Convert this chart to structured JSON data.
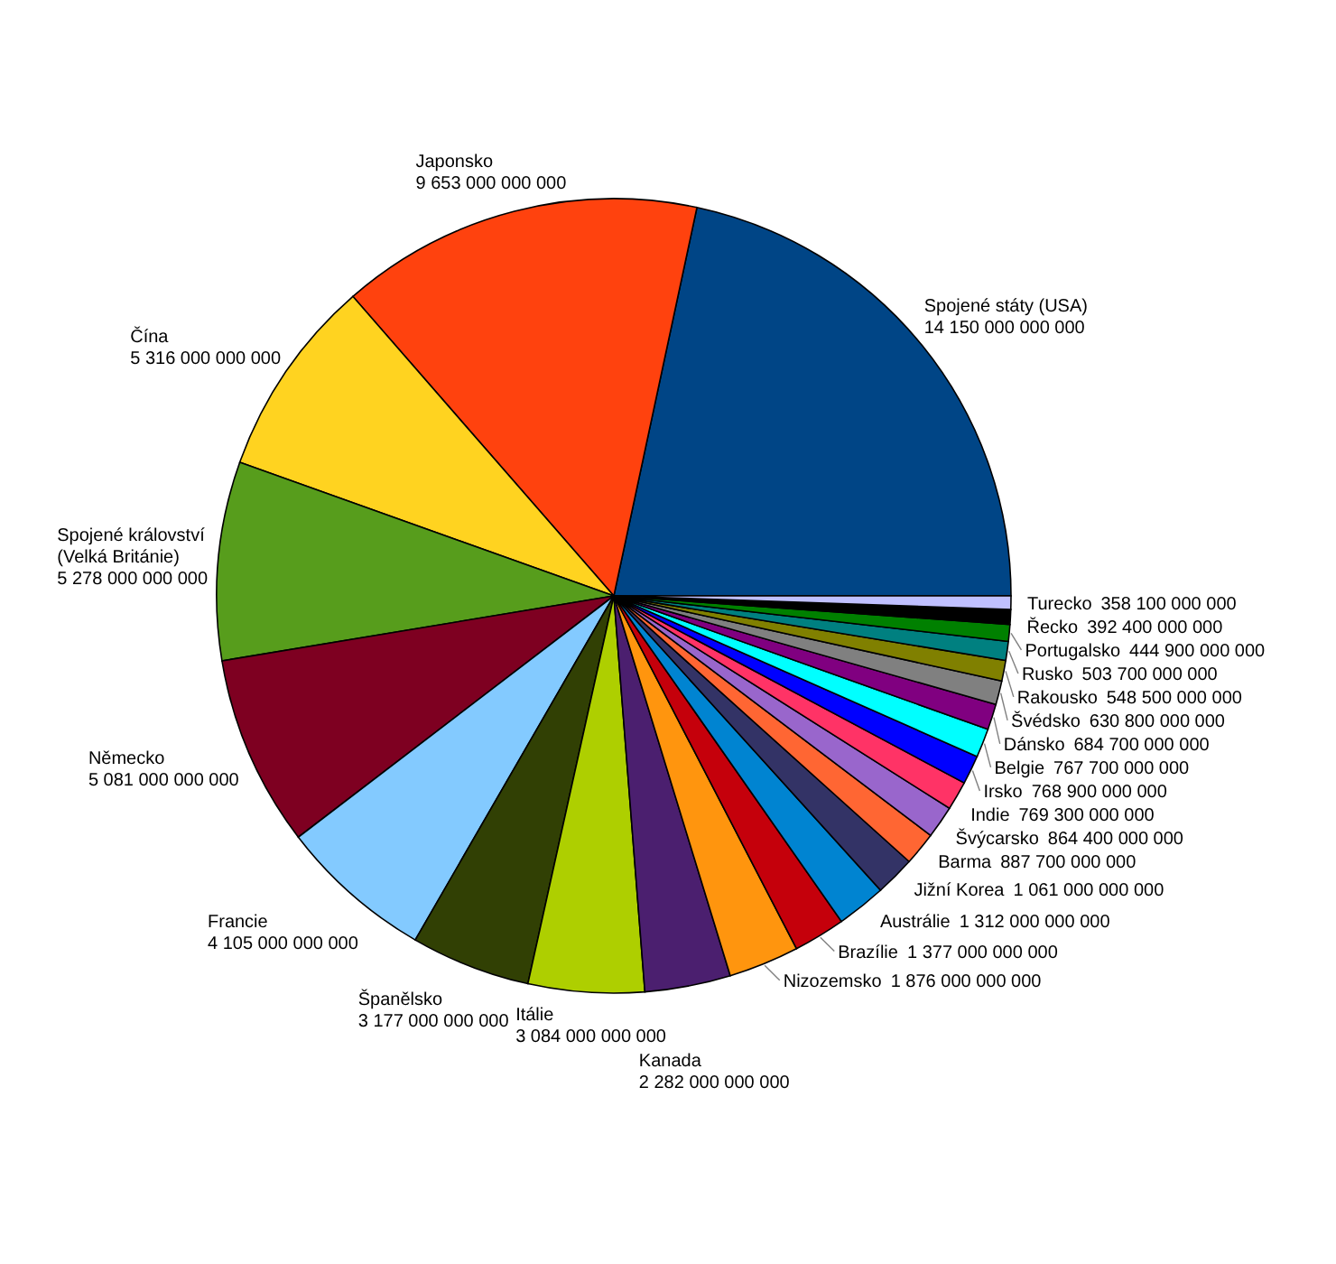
{
  "chart_data": {
    "type": "pie",
    "categories": [
      "Spojené státy (USA)",
      "Japonsko",
      "Čína",
      "Spojené království (Velká Británie)",
      "Německo",
      "Francie",
      "Španělsko",
      "Itálie",
      "Kanada",
      "Nizozemsko",
      "Brazílie",
      "Austrálie",
      "Jižní Korea",
      "Barma",
      "Švýcarsko",
      "Indie",
      "Irsko",
      "Belgie",
      "Dánsko",
      "Švédsko",
      "Rakousko",
      "Rusko",
      "Portugalsko",
      "Řecko",
      "Turecko"
    ],
    "values": [
      14150000000000,
      9653000000000,
      5316000000000,
      5278000000000,
      5081000000000,
      4105000000000,
      3177000000000,
      3084000000000,
      2282000000000,
      1876000000000,
      1377000000000,
      1312000000000,
      1061000000000,
      887700000000,
      864400000000,
      769300000000,
      768900000000,
      767700000000,
      684700000000,
      630800000000,
      548500000000,
      503700000000,
      444900000000,
      392400000000,
      358100000000
    ],
    "colors": [
      "#004586",
      "#ff420e",
      "#ffd320",
      "#579d1c",
      "#7e0021",
      "#83caff",
      "#314004",
      "#aecf00",
      "#4b1f6f",
      "#ff950e",
      "#c5000b",
      "#0084d1",
      "#333366",
      "#ff6633",
      "#9966cc",
      "#ff3366",
      "#0000ff",
      "#00ffff",
      "#800080",
      "#808080",
      "#808000",
      "#008080",
      "#008000",
      "#000000",
      "#c0c0ff"
    ],
    "data_labels": true
  }
}
